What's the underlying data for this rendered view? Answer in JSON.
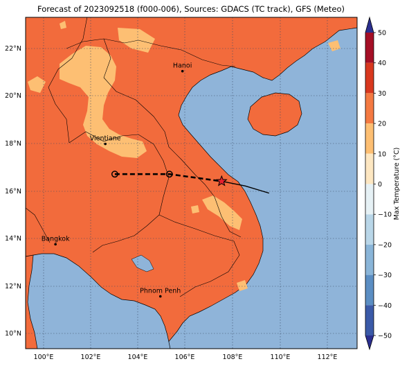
{
  "title": "Forecast of 2023092518 (f000-006), Sources: GDACS (TC track), GFS (Meteo)",
  "colorbar": {
    "label": "Max Temperature (°C)",
    "ticks": [
      "−50",
      "−40",
      "−30",
      "−20",
      "−10",
      "0",
      "10",
      "20",
      "30",
      "40",
      "50"
    ],
    "colors": [
      "#2b2f8f",
      "#3b5aa8",
      "#5b8ec3",
      "#8ab5d8",
      "#b9d6e8",
      "#e6f1f5",
      "#fde7c2",
      "#fdbf73",
      "#f47a42",
      "#d8381f",
      "#a50f26"
    ]
  },
  "map": {
    "latitude_ticks": [
      "10°N",
      "12°N",
      "14°N",
      "16°N",
      "18°N",
      "20°N",
      "22°N"
    ],
    "longitude_ticks": [
      "100°E",
      "102°E",
      "104°E",
      "106°E",
      "108°E",
      "110°E",
      "112°E"
    ],
    "ocean_color": "#8fb4d9",
    "land_color": "#f26b3c",
    "cool_land_color": "#fdbf73",
    "cities": [
      {
        "name": "Hanoi",
        "lon": 105.85,
        "lat": 21.03
      },
      {
        "name": "Vientiane",
        "lon": 102.6,
        "lat": 17.97
      },
      {
        "name": "Bangkok",
        "lon": 100.5,
        "lat": 13.75
      },
      {
        "name": "Phnom Penh",
        "lon": 104.92,
        "lat": 11.56
      }
    ],
    "track_forecast": [
      {
        "lon": 103.0,
        "lat": 16.7
      },
      {
        "lon": 105.3,
        "lat": 16.7
      },
      {
        "lon": 107.5,
        "lat": 16.4
      }
    ],
    "track_observed": [
      {
        "lon": 107.5,
        "lat": 16.4
      },
      {
        "lon": 108.5,
        "lat": 16.2
      },
      {
        "lon": 109.5,
        "lat": 15.9
      }
    ],
    "storm_position": {
      "lon": 107.5,
      "lat": 16.4
    }
  }
}
